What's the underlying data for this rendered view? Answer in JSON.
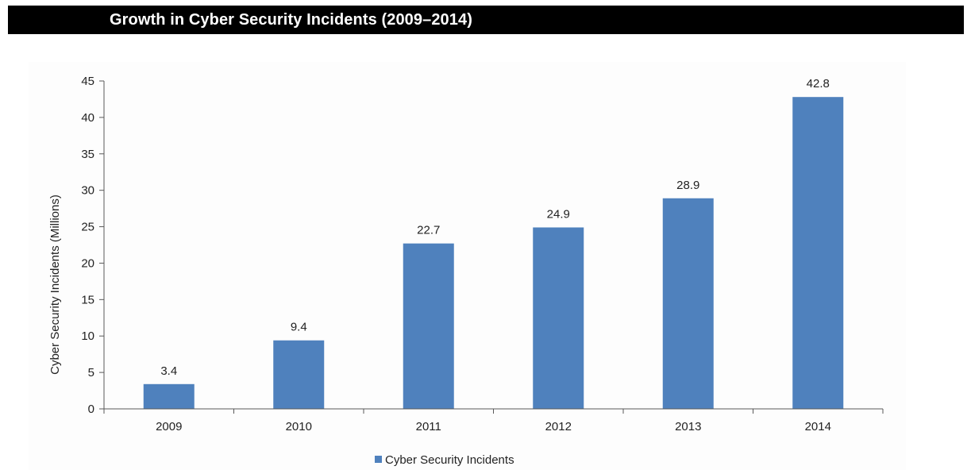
{
  "header": {
    "title": "Growth in Cyber Security Incidents (2009–2014)"
  },
  "colors": {
    "bar": "#4f81bd",
    "title_bar_bg": "#000000",
    "title_text": "#ffffff",
    "axis": "#595959"
  },
  "chart_data": {
    "type": "bar",
    "title": "Growth in Cyber Security Incidents (2009–2014)",
    "xlabel": "",
    "ylabel": "Cyber Security Incidents (Millions)",
    "categories": [
      "2009",
      "2010",
      "2011",
      "2012",
      "2013",
      "2014"
    ],
    "series": [
      {
        "name": "Cyber Security Incidents",
        "values": [
          3.4,
          9.4,
          22.7,
          24.9,
          28.9,
          42.8
        ]
      }
    ],
    "data_labels": [
      "3.4",
      "9.4",
      "22.7",
      "24.9",
      "28.9",
      "42.8"
    ],
    "ylim": [
      0,
      45
    ],
    "yticks": [
      0,
      5,
      10,
      15,
      20,
      25,
      30,
      35,
      40,
      45
    ],
    "grid": false,
    "legend": "bottom-center"
  }
}
